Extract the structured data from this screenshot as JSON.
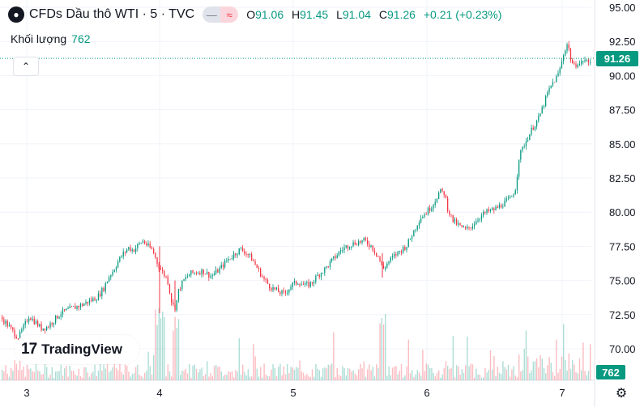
{
  "legend": {
    "symbol_icon": "drop-icon",
    "title": "CFDs Dầu thô WTI · 5 · TVC",
    "ohlc": {
      "o_label": "O",
      "o": "91.06",
      "h_label": "H",
      "h": "91.45",
      "l_label": "L",
      "l": "91.04",
      "c_label": "C",
      "c": "91.26",
      "change": "+0.21 (+0.23%)"
    }
  },
  "volume_legend": {
    "label": "Khối lượng",
    "value": "762"
  },
  "logo": {
    "text": "TradingView"
  },
  "price_badge": "91.26",
  "volume_badge": "762",
  "colors": {
    "up": "#089981",
    "down": "#f23645",
    "text": "#131722",
    "grid": "#f0f3fa"
  },
  "chart_data": {
    "type": "candlestick",
    "y_ticks": [
      "95.00",
      "92.50",
      "90.00",
      "87.50",
      "85.00",
      "82.50",
      "80.00",
      "77.50",
      "75.00",
      "72.50",
      "70.00"
    ],
    "ylim": [
      68.2,
      95.0
    ],
    "x_ticks": [
      "3",
      "4",
      "5",
      "6",
      "7"
    ],
    "last_price": 91.26,
    "close_path": [
      [
        0,
        72.3
      ],
      [
        8,
        71.8
      ],
      [
        16,
        71.2
      ],
      [
        22,
        70.8
      ],
      [
        28,
        71.5
      ],
      [
        35,
        72.4
      ],
      [
        42,
        72.0
      ],
      [
        50,
        71.5
      ],
      [
        58,
        71.6
      ],
      [
        66,
        72.1
      ],
      [
        74,
        72.6
      ],
      [
        82,
        72.8
      ],
      [
        90,
        73.0
      ],
      [
        100,
        73.2
      ],
      [
        110,
        73.5
      ],
      [
        120,
        73.8
      ],
      [
        128,
        74.5
      ],
      [
        134,
        75.3
      ],
      [
        140,
        75.8
      ],
      [
        146,
        76.5
      ],
      [
        152,
        77.0
      ],
      [
        158,
        77.4
      ],
      [
        164,
        77.2
      ],
      [
        170,
        77.6
      ],
      [
        176,
        77.9
      ],
      [
        182,
        77.5
      ],
      [
        188,
        77.2
      ],
      [
        194,
        76.2
      ],
      [
        200,
        75.6
      ],
      [
        206,
        75.1
      ],
      [
        212,
        73.2
      ],
      [
        216,
        73.0
      ],
      [
        220,
        74.3
      ],
      [
        226,
        75.0
      ],
      [
        234,
        75.5
      ],
      [
        242,
        75.6
      ],
      [
        250,
        75.7
      ],
      [
        260,
        75.3
      ],
      [
        270,
        75.8
      ],
      [
        280,
        76.5
      ],
      [
        290,
        77.0
      ],
      [
        296,
        77.3
      ],
      [
        302,
        77.1
      ],
      [
        310,
        76.6
      ],
      [
        318,
        75.8
      ],
      [
        326,
        75.0
      ],
      [
        334,
        74.5
      ],
      [
        342,
        74.2
      ],
      [
        350,
        74.0
      ],
      [
        360,
        74.7
      ],
      [
        368,
        74.9
      ],
      [
        376,
        74.6
      ],
      [
        384,
        74.8
      ],
      [
        392,
        75.4
      ],
      [
        400,
        75.8
      ],
      [
        410,
        76.5
      ],
      [
        420,
        77.2
      ],
      [
        430,
        77.6
      ],
      [
        440,
        77.8
      ],
      [
        450,
        77.9
      ],
      [
        458,
        77.5
      ],
      [
        466,
        76.8
      ],
      [
        472,
        75.8
      ],
      [
        478,
        76.3
      ],
      [
        486,
        76.8
      ],
      [
        494,
        77.2
      ],
      [
        502,
        77.6
      ],
      [
        510,
        78.6
      ],
      [
        518,
        79.6
      ],
      [
        526,
        80.0
      ],
      [
        534,
        80.6
      ],
      [
        542,
        81.5
      ],
      [
        548,
        81.4
      ],
      [
        552,
        80.3
      ],
      [
        558,
        79.4
      ],
      [
        566,
        79.0
      ],
      [
        574,
        78.7
      ],
      [
        582,
        79.0
      ],
      [
        590,
        79.6
      ],
      [
        600,
        80.0
      ],
      [
        610,
        80.2
      ],
      [
        620,
        80.6
      ],
      [
        630,
        81.0
      ],
      [
        636,
        81.8
      ],
      [
        640,
        84.0
      ],
      [
        646,
        84.9
      ],
      [
        652,
        85.6
      ],
      [
        658,
        86.3
      ],
      [
        664,
        86.8
      ],
      [
        670,
        87.8
      ],
      [
        676,
        88.8
      ],
      [
        682,
        89.5
      ],
      [
        688,
        90.0
      ],
      [
        692,
        90.8
      ],
      [
        696,
        91.8
      ],
      [
        700,
        92.4
      ],
      [
        704,
        91.2
      ],
      [
        708,
        90.6
      ],
      [
        712,
        91.0
      ],
      [
        716,
        90.8
      ],
      [
        720,
        91.2
      ],
      [
        726,
        90.9
      ],
      [
        730,
        91.26
      ]
    ]
  }
}
